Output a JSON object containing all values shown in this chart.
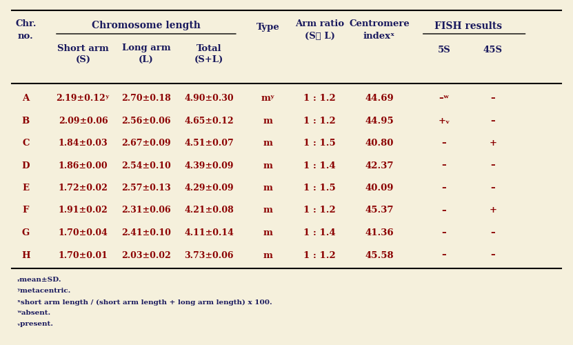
{
  "background_color": "#f5f0dc",
  "title_color": "#1a1a5e",
  "data_color": "#8b0000",
  "header_color": "#1a1a5e",
  "footnote_color": "#1a1a5e",
  "rows": [
    {
      "chr": "A",
      "short": "2.19±0.12ʸ",
      "long": "2.70±0.18",
      "total": "4.90±0.30",
      "type": "mʸ",
      "arm": "1 : 1.2",
      "ci": "44.69",
      "s5": "–ʷ",
      "s45": "–"
    },
    {
      "chr": "B",
      "short": "2.09±0.06",
      "long": "2.56±0.06",
      "total": "4.65±0.12",
      "type": "m",
      "arm": "1 : 1.2",
      "ci": "44.95",
      "s5": "+ᵥ",
      "s45": "–"
    },
    {
      "chr": "C",
      "short": "1.84±0.03",
      "long": "2.67±0.09",
      "total": "4.51±0.07",
      "type": "m",
      "arm": "1 : 1.5",
      "ci": "40.80",
      "s5": "–",
      "s45": "+"
    },
    {
      "chr": "D",
      "short": "1.86±0.00",
      "long": "2.54±0.10",
      "total": "4.39±0.09",
      "type": "m",
      "arm": "1 : 1.4",
      "ci": "42.37",
      "s5": "–",
      "s45": "–"
    },
    {
      "chr": "E",
      "short": "1.72±0.02",
      "long": "2.57±0.13",
      "total": "4.29±0.09",
      "type": "m",
      "arm": "1 : 1.5",
      "ci": "40.09",
      "s5": "–",
      "s45": "–"
    },
    {
      "chr": "F",
      "short": "1.91±0.02",
      "long": "2.31±0.06",
      "total": "4.21±0.08",
      "type": "m",
      "arm": "1 : 1.2",
      "ci": "45.37",
      "s5": "–",
      "s45": "+"
    },
    {
      "chr": "G",
      "short": "1.70±0.04",
      "long": "2.41±0.10",
      "total": "4.11±0.14",
      "type": "m",
      "arm": "1 : 1.4",
      "ci": "41.36",
      "s5": "–",
      "s45": "–"
    },
    {
      "chr": "H",
      "short": "1.70±0.01",
      "long": "2.03±0.02",
      "total": "3.73±0.06",
      "type": "m",
      "arm": "1 : 1.2",
      "ci": "45.58",
      "s5": "–",
      "s45": "–"
    }
  ],
  "footnotes": [
    "ᵣmean±SD.",
    "ʸmetacentric.",
    "ˣshort arm length / (short arm length + long arm length) x 100.",
    "ʷabsent.",
    "ᵥpresent."
  ]
}
